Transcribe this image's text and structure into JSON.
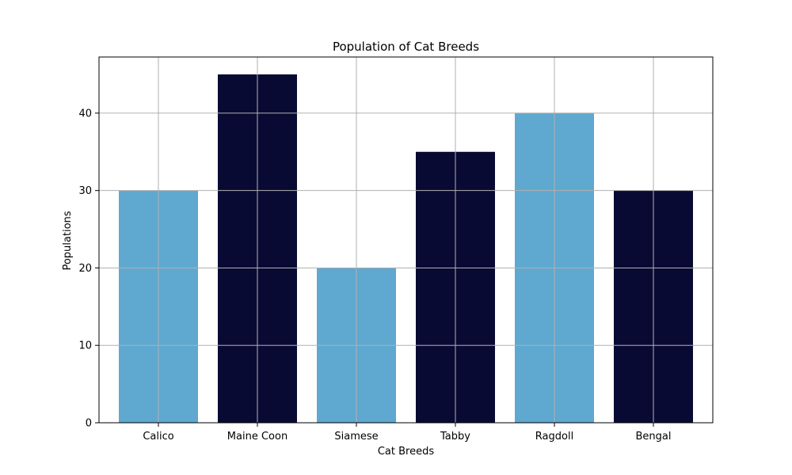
{
  "chart_data": {
    "type": "bar",
    "title": "Population of Cat Breeds",
    "xlabel": "Cat Breeds",
    "ylabel": "Populations",
    "categories": [
      "Calico",
      "Maine Coon",
      "Siamese",
      "Tabby",
      "Ragdoll",
      "Bengal"
    ],
    "values": [
      30,
      45,
      20,
      35,
      40,
      30
    ],
    "bar_colors": [
      "#5fa8d0",
      "#090a33",
      "#5fa8d0",
      "#090a33",
      "#5fa8d0",
      "#090a33"
    ],
    "ylim": [
      0,
      47.25
    ],
    "yticks": [
      0,
      10,
      20,
      30,
      40
    ],
    "grid": true,
    "grid_color": "#b0b0b0",
    "legend": "none"
  }
}
